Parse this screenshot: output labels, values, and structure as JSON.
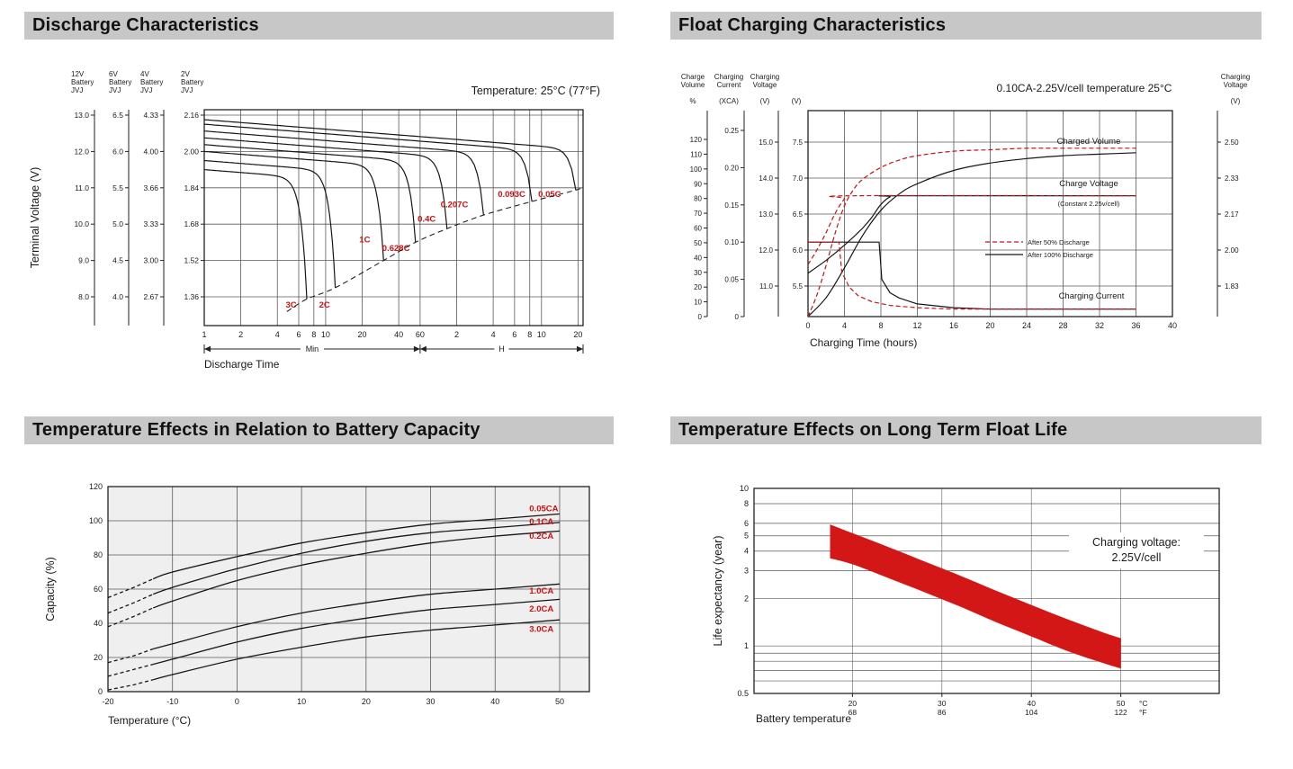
{
  "panels": {
    "discharge": {
      "title": "Discharge Characteristics"
    },
    "float_charging": {
      "title": "Float Charging Characteristics"
    },
    "temp_capacity": {
      "title": "Temperature Effects in Relation to Battery Capacity"
    },
    "float_life": {
      "title": "Temperature Effects on Long Term Float Life"
    }
  },
  "colors": {
    "header_bg": "#c7c7c7",
    "axis": "#222222",
    "grid": "#5a5a5a",
    "curve": "#161616",
    "accent_red": "#cc1111",
    "band_red": "#d31717",
    "plot_bg_gray": "#efefef"
  },
  "chart_data": [
    {
      "id": "discharge",
      "type": "line",
      "temperature_note": "Temperature: 25°C (77°F)",
      "ylabel": "Terminal Voltage (V)",
      "xlabel": "Discharge Time",
      "x_sections": [
        {
          "unit": "Min",
          "ticks": [
            1,
            2,
            4,
            6,
            8,
            10,
            20,
            40,
            60
          ]
        },
        {
          "unit": "H",
          "ticks": [
            2,
            4,
            6,
            8,
            10,
            20
          ]
        }
      ],
      "voltage_scales": [
        {
          "battery": "12V",
          "lines": [
            "12V",
            "Battery",
            "JVJ"
          ],
          "ticks": [
            "13.0",
            "12.0",
            "11.0",
            "10.0",
            "9.0",
            "8.0"
          ]
        },
        {
          "battery": "6V",
          "lines": [
            "6V",
            "Battery",
            "JVJ"
          ],
          "ticks": [
            "6.5",
            "6.0",
            "5.5",
            "5.0",
            "4.5",
            "4.0"
          ]
        },
        {
          "battery": "4V",
          "lines": [
            "4V",
            "Battery",
            "JVJ"
          ],
          "ticks": [
            "4.33",
            "4.00",
            "3.66",
            "3.33",
            "3.00",
            "2.67"
          ]
        },
        {
          "battery": "2V",
          "lines": [
            "2V",
            "Battery",
            "JVJ"
          ],
          "ticks": [
            "2.16",
            "2.00",
            "1.84",
            "1.68",
            "1.52",
            "1.36"
          ]
        }
      ],
      "y_grid_2v": [
        2.16,
        2.0,
        1.84,
        1.68,
        1.52,
        1.36
      ],
      "series": [
        {
          "label": "3C",
          "v_start": 1.92,
          "t_end_min": 7,
          "v_end": 1.35,
          "label_at": [
            5.2,
            1.312
          ]
        },
        {
          "label": "2C",
          "v_start": 1.96,
          "t_end_min": 12,
          "v_end": 1.4,
          "label_at": [
            9.8,
            1.312
          ]
        },
        {
          "label": "1C",
          "v_start": 2.0,
          "t_end_min": 30,
          "v_end": 1.52,
          "label_at": [
            21,
            1.6
          ]
        },
        {
          "label": "0.628C",
          "v_start": 2.03,
          "t_end_min": 55,
          "v_end": 1.6,
          "label_at": [
            38,
            1.562
          ]
        },
        {
          "label": "0.4C",
          "v_start": 2.06,
          "t_end_min": 100,
          "v_end": 1.66,
          "label_at": [
            68,
            1.69
          ]
        },
        {
          "label": "0.207C",
          "v_start": 2.09,
          "t_end_min": 200,
          "v_end": 1.72,
          "label_at": [
            115,
            1.755
          ]
        },
        {
          "label": "0.093C",
          "v_start": 2.12,
          "t_end_min": 500,
          "v_end": 1.78,
          "label_at": [
            340,
            1.8
          ]
        },
        {
          "label": "0.05C",
          "v_start": 2.14,
          "t_end_min": 1150,
          "v_end": 1.83,
          "label_at": [
            700,
            1.8
          ]
        }
      ],
      "cutoff_dashed": true
    },
    {
      "id": "float_charging",
      "type": "line",
      "condition_note": "0.10CA-2.25V/cell  temperature 25°C",
      "xlabel": "Charging Time (hours)",
      "x_ticks": [
        0,
        4,
        8,
        12,
        16,
        20,
        24,
        28,
        32,
        36,
        40
      ],
      "axes_left": [
        {
          "header": [
            "Charge",
            "Volume"
          ],
          "unit": "%",
          "ticks": [
            "120",
            "110",
            "100",
            "90",
            "80",
            "70",
            "60",
            "50",
            "40",
            "30",
            "20",
            "10",
            "0"
          ]
        },
        {
          "header": [
            "Charging",
            "Current"
          ],
          "unit": "(XCA)",
          "ticks": [
            "0.25",
            "0.20",
            "0.15",
            "0.10",
            "0.05",
            "0"
          ]
        },
        {
          "header": [
            "Charging",
            "Voltage"
          ],
          "unit": "(V)",
          "ticks": [
            "15.0",
            "14.0",
            "13.0",
            "12.0",
            "11.0"
          ]
        },
        {
          "header": [],
          "unit": "(V)",
          "ticks": [
            "7.5",
            "7.0",
            "6.5",
            "6.0",
            "5.5"
          ]
        }
      ],
      "axis_right": {
        "header": [
          "Charging",
          "Voltage"
        ],
        "unit": "(V)",
        "ticks": [
          "2.50",
          "2.33",
          "2.17",
          "2.00",
          "1.83"
        ]
      },
      "legend": [
        {
          "label": "After  50% Discharge",
          "style": "dashed",
          "color": "red"
        },
        {
          "label": "After 100% Discharge",
          "style": "solid",
          "color": "black"
        }
      ],
      "curve_labels": {
        "charged_volume": "Charged Volume",
        "charge_voltage": "Charge Voltage",
        "charge_voltage_sub": "(Constant 2.25v/cell)",
        "charging_current": "Charging Current"
      },
      "series": [
        {
          "name": "charged_volume_100",
          "scale": "volume",
          "style": "solid",
          "points": [
            [
              0,
              0
            ],
            [
              2,
              13
            ],
            [
              4,
              33
            ],
            [
              6,
              55
            ],
            [
              8,
              72
            ],
            [
              10,
              83
            ],
            [
              12,
              90
            ],
            [
              16,
              99
            ],
            [
              20,
              104
            ],
            [
              24,
              107
            ],
            [
              28,
              109
            ],
            [
              32,
              110
            ],
            [
              36,
              111
            ]
          ]
        },
        {
          "name": "charged_volume_50",
          "scale": "volume",
          "style": "dashed",
          "points": [
            [
              0,
              0
            ],
            [
              1,
              15
            ],
            [
              2,
              35
            ],
            [
              3,
              57
            ],
            [
              4,
              75
            ],
            [
              5,
              86
            ],
            [
              6,
              93
            ],
            [
              8,
              101
            ],
            [
              10,
              106
            ],
            [
              12,
              109
            ],
            [
              16,
              112
            ],
            [
              20,
              113
            ],
            [
              24,
              114
            ],
            [
              28,
              114
            ],
            [
              32,
              114
            ],
            [
              36,
              114
            ]
          ]
        },
        {
          "name": "charge_voltage_100",
          "scale": "vcell",
          "style": "solid",
          "points": [
            [
              0,
              1.89
            ],
            [
              2,
              1.95
            ],
            [
              4,
              2.02
            ],
            [
              6,
              2.1
            ],
            [
              7,
              2.15
            ],
            [
              8,
              2.21
            ],
            [
              9,
              2.245
            ],
            [
              10,
              2.25
            ],
            [
              36,
              2.25
            ]
          ]
        },
        {
          "name": "charge_voltage_50",
          "scale": "vcell",
          "style": "dashed",
          "points": [
            [
              0,
              1.93
            ],
            [
              1,
              2.0
            ],
            [
              2,
              2.08
            ],
            [
              3,
              2.17
            ],
            [
              4,
              2.235
            ],
            [
              4.8,
              2.25
            ],
            [
              36,
              2.25
            ]
          ]
        },
        {
          "name": "charging_current_100",
          "scale": "current",
          "style": "solid",
          "points": [
            [
              0,
              0.1
            ],
            [
              7.8,
              0.1
            ],
            [
              8.1,
              0.05
            ],
            [
              9,
              0.032
            ],
            [
              10,
              0.025
            ],
            [
              12,
              0.017
            ],
            [
              16,
              0.012
            ],
            [
              20,
              0.01
            ],
            [
              36,
              0.01
            ]
          ]
        },
        {
          "name": "charging_current_50",
          "scale": "current",
          "style": "dashed",
          "points": [
            [
              0,
              0.1
            ],
            [
              3.4,
              0.1
            ],
            [
              3.7,
              0.06
            ],
            [
              4.5,
              0.04
            ],
            [
              5.5,
              0.028
            ],
            [
              7,
              0.02
            ],
            [
              9,
              0.015
            ],
            [
              12,
              0.012
            ],
            [
              16,
              0.01
            ],
            [
              36,
              0.01
            ]
          ]
        }
      ]
    },
    {
      "id": "temp_capacity",
      "type": "line",
      "xlabel": "Temperature (°C)",
      "ylabel": "Capacity (%)",
      "x_ticks": [
        -20,
        -10,
        0,
        10,
        20,
        30,
        40,
        50
      ],
      "y_ticks": [
        0,
        20,
        40,
        60,
        80,
        100,
        120
      ],
      "x": [
        -20,
        -16,
        -13,
        -10,
        0,
        10,
        20,
        30,
        40,
        50
      ],
      "dashed_below": -13,
      "series": [
        {
          "name": "0.05CA",
          "values": [
            55,
            61,
            66,
            70,
            79,
            87,
            93,
            98,
            101,
            104
          ],
          "label_at": [
            45.3,
            107
          ]
        },
        {
          "name": "0.1CA",
          "values": [
            46,
            52,
            57,
            61,
            72,
            81,
            88,
            93,
            96,
            99
          ],
          "label_at": [
            45.3,
            99.5
          ]
        },
        {
          "name": "0.2CA",
          "values": [
            38,
            44,
            49,
            53,
            65,
            74,
            81,
            87,
            91,
            94
          ],
          "label_at": [
            45.3,
            91
          ]
        },
        {
          "name": "1.0CA",
          "values": [
            17,
            21,
            25,
            28,
            38,
            46,
            52,
            57,
            60,
            63
          ],
          "label_at": [
            45.3,
            59
          ]
        },
        {
          "name": "2.0CA",
          "values": [
            9,
            13,
            16,
            19,
            29,
            37,
            43,
            48,
            51,
            54
          ],
          "label_at": [
            45.3,
            48.5
          ]
        },
        {
          "name": "3.0CA",
          "values": [
            1,
            4,
            7,
            10,
            19,
            26,
            32,
            36,
            39,
            42
          ],
          "label_at": [
            45.3,
            36.5
          ]
        }
      ]
    },
    {
      "id": "float_life",
      "type": "area-band",
      "xlabel": "Battery temperature",
      "ylabel": "Life expectancy (year)",
      "annotation": [
        "Charging voltage:",
        "2.25V/cell"
      ],
      "x_unit_c": "°C",
      "x_unit_f": "°F",
      "x_ticks": [
        {
          "c": "20",
          "f": "68"
        },
        {
          "c": "30",
          "f": "86"
        },
        {
          "c": "40",
          "f": "104"
        },
        {
          "c": "50",
          "f": "122"
        }
      ],
      "y_ticks_labeled": [
        "10",
        "8",
        "6",
        "5",
        "4",
        "3",
        "2",
        "1",
        "0.5"
      ],
      "y_grid": [
        8,
        6,
        5,
        4,
        3,
        2,
        1,
        0.9,
        0.8,
        0.7,
        0.6
      ],
      "xlim": [
        9,
        61
      ],
      "ylim": [
        0.5,
        10
      ],
      "band": {
        "upper": [
          [
            17.5,
            5.9
          ],
          [
            20,
            5.2
          ],
          [
            24,
            4.25
          ],
          [
            28,
            3.45
          ],
          [
            32,
            2.8
          ],
          [
            36,
            2.25
          ],
          [
            40,
            1.82
          ],
          [
            44,
            1.48
          ],
          [
            48,
            1.22
          ],
          [
            50,
            1.12
          ]
        ],
        "lower": [
          [
            17.5,
            3.6
          ],
          [
            20,
            3.3
          ],
          [
            24,
            2.7
          ],
          [
            28,
            2.2
          ],
          [
            32,
            1.78
          ],
          [
            36,
            1.42
          ],
          [
            40,
            1.15
          ],
          [
            44,
            0.93
          ],
          [
            48,
            0.78
          ],
          [
            50,
            0.72
          ]
        ]
      }
    }
  ]
}
